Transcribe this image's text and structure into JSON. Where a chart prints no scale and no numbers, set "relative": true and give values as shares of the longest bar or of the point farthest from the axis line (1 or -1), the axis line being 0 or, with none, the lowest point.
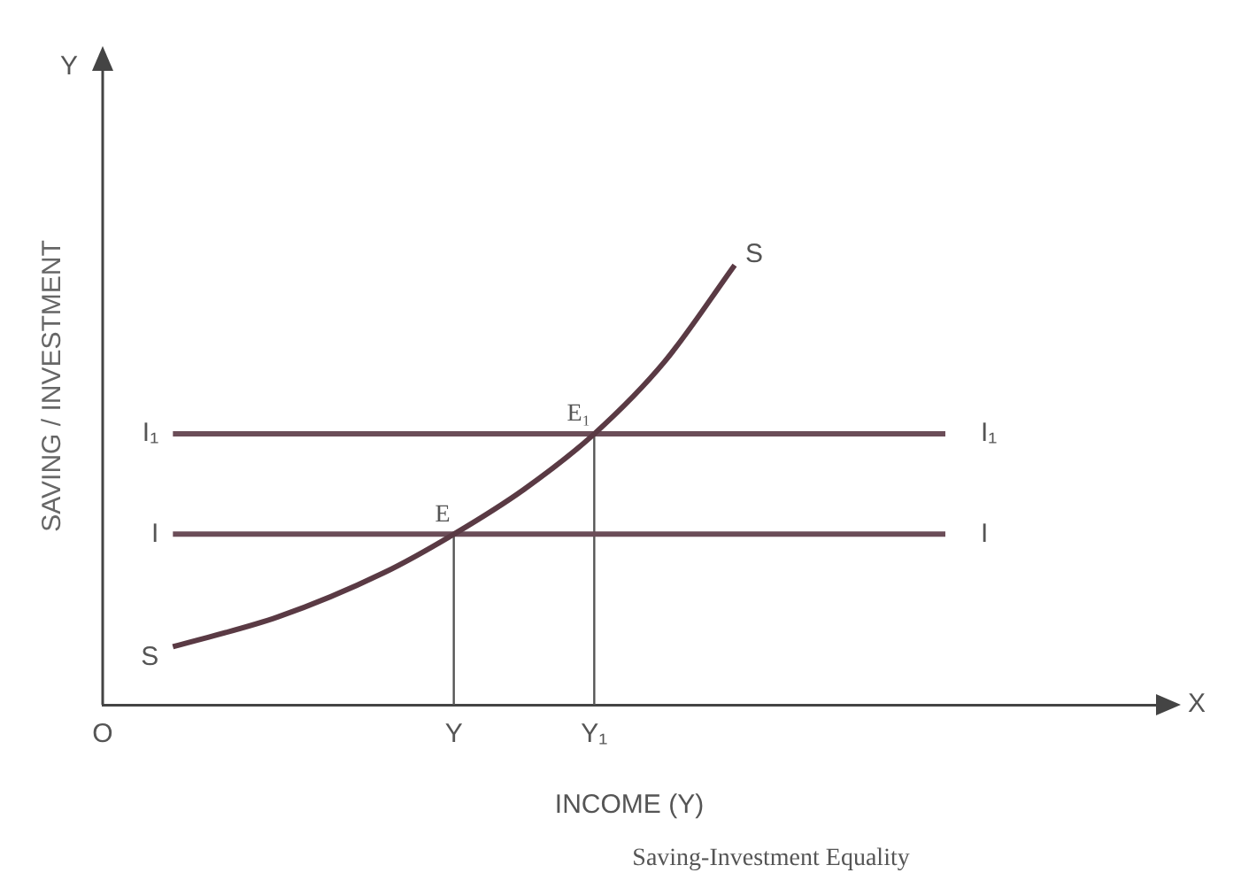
{
  "chart_data": {
    "type": "line",
    "relative": true,
    "xlabel": "INCOME (Y)",
    "ylabel": "SAVING / INVESTMENT",
    "annotations": [
      "Y",
      "X",
      "Saving-Investment Equality",
      {
        "text": "E",
        "x": "Y",
        "y": 0.388
      },
      {
        "text": "E₁",
        "x": "Y₁",
        "y": 0.616
      }
    ],
    "categories": [
      "O",
      null,
      null,
      null,
      null,
      null,
      null,
      null,
      null,
      null,
      "Y",
      null,
      null,
      null,
      "Y₁",
      null,
      null,
      null,
      null,
      null,
      null,
      null,
      null,
      null,
      null,
      null,
      null,
      null,
      null,
      null,
      null
    ],
    "tick_labels": "x",
    "grid": false,
    "legend": false,
    "marker": "none",
    "line_style": "solid",
    "ref_lines": [
      {
        "axis": "x",
        "value": "Y",
        "color": "#555555"
      },
      {
        "axis": "x",
        "value": "Y₁",
        "color": "#555555"
      }
    ],
    "series": [
      {
        "name": "S",
        "color": "#5a3a44",
        "values": [
          null,
          null,
          0.132,
          null,
          null,
          0.2,
          null,
          null,
          0.3,
          null,
          0.388,
          null,
          0.49,
          null,
          0.616,
          null,
          0.78,
          null,
          1.0,
          null,
          null,
          null,
          null,
          null,
          null,
          null,
          null,
          null,
          null,
          null,
          null
        ]
      },
      {
        "name": "I",
        "color": "#6b4d58",
        "values": [
          null,
          null,
          0.388,
          null,
          null,
          null,
          null,
          null,
          null,
          null,
          null,
          null,
          null,
          null,
          null,
          null,
          null,
          null,
          null,
          null,
          null,
          null,
          null,
          null,
          0.388,
          null,
          null,
          null,
          null,
          null,
          null
        ]
      },
      {
        "name": "I₁",
        "color": "#6b4d58",
        "values": [
          null,
          null,
          0.616,
          null,
          null,
          null,
          null,
          null,
          null,
          null,
          null,
          null,
          null,
          null,
          null,
          null,
          null,
          null,
          null,
          null,
          null,
          null,
          null,
          null,
          0.616,
          null,
          null,
          null,
          null,
          null,
          null
        ]
      }
    ]
  }
}
